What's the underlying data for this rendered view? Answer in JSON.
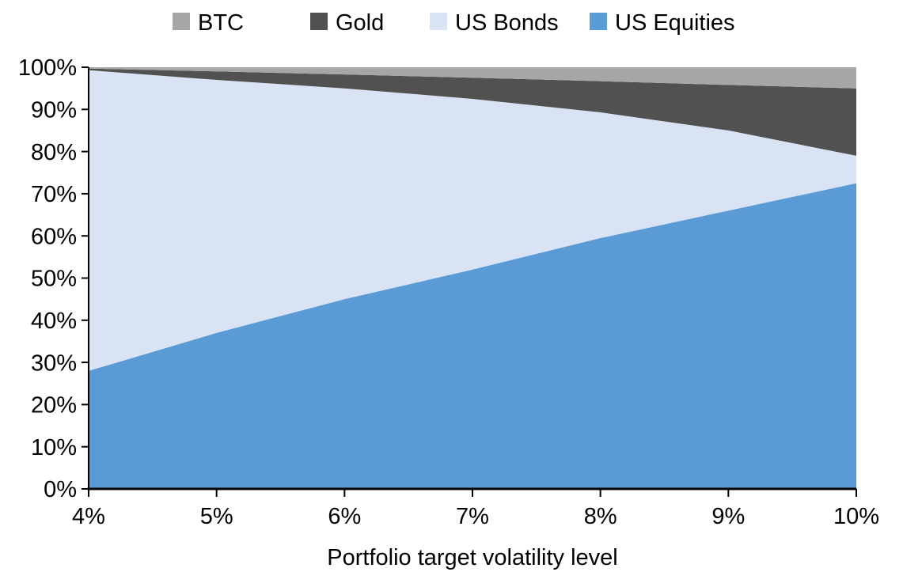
{
  "chart_data": {
    "type": "area",
    "stacked": true,
    "percent_stacked": true,
    "title": "",
    "xlabel": "Portfolio target volatility level",
    "ylabel": "",
    "xlim": [
      4,
      10
    ],
    "ylim": [
      0,
      100
    ],
    "grid": false,
    "legend_position": "top",
    "x": [
      4,
      5,
      6,
      7,
      8,
      9,
      10
    ],
    "x_tick_labels": [
      "4%",
      "5%",
      "6%",
      "7%",
      "8%",
      "9%",
      "10%"
    ],
    "y_ticks": [
      0,
      10,
      20,
      30,
      40,
      50,
      60,
      70,
      80,
      90,
      100
    ],
    "y_tick_labels": [
      "0%",
      "10%",
      "20%",
      "30%",
      "40%",
      "50%",
      "60%",
      "70%",
      "80%",
      "90%",
      "100%"
    ],
    "series": [
      {
        "name": "US Equities",
        "color": "#5b9bd5",
        "values": [
          28,
          37,
          45,
          52,
          59.5,
          66,
          72.5
        ]
      },
      {
        "name": "US Bonds",
        "color": "#dae3f3",
        "values": [
          71.3,
          60,
          50,
          40.5,
          29.8,
          19,
          6.5
        ]
      },
      {
        "name": "Gold",
        "color": "#515151",
        "values": [
          0.4,
          2,
          3.3,
          5,
          7.4,
          10.8,
          16
        ]
      },
      {
        "name": "BTC",
        "color": "#a6a6a6",
        "values": [
          0.3,
          1,
          1.7,
          2.5,
          3.3,
          4.2,
          5
        ]
      }
    ],
    "legend": [
      {
        "label": "BTC",
        "color": "#a6a6a6"
      },
      {
        "label": "Gold",
        "color": "#515151"
      },
      {
        "label": "US Bonds",
        "color": "#dae3f3"
      },
      {
        "label": "US Equities",
        "color": "#5b9bd5"
      }
    ]
  }
}
